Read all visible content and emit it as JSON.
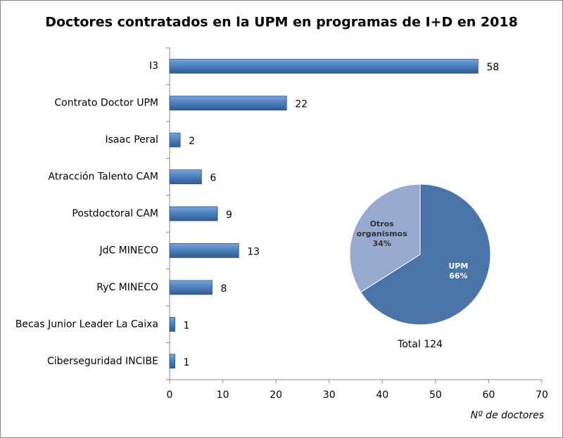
{
  "chart_data": [
    {
      "type": "bar",
      "orientation": "horizontal",
      "title": "Doctores contratados  en la UPM en programas  de I+D en 2018",
      "categories": [
        "I3",
        "Contrato Doctor UPM",
        "Isaac Peral",
        "Atracción Talento CAM",
        "Postdoctoral CAM",
        "JdC MINECO",
        "RyC MINECO",
        "Becas Junior Leader La Caixa",
        "Ciberseguridad INCIBE"
      ],
      "values": [
        58,
        22,
        2,
        6,
        9,
        13,
        8,
        1,
        1
      ],
      "color": "#4f81bd",
      "xlim": [
        0,
        70
      ],
      "xticks": [
        0,
        10,
        20,
        30,
        40,
        50,
        60,
        70
      ],
      "x_label": "Nº de doctores"
    },
    {
      "type": "pie",
      "categories": [
        "UPM",
        "Otros organismos"
      ],
      "values": [
        66,
        34
      ],
      "value_labels": [
        "66%",
        "34%"
      ],
      "colors": [
        "#4a74a8",
        "#96a9cf"
      ],
      "annotation": "Total 124"
    }
  ]
}
